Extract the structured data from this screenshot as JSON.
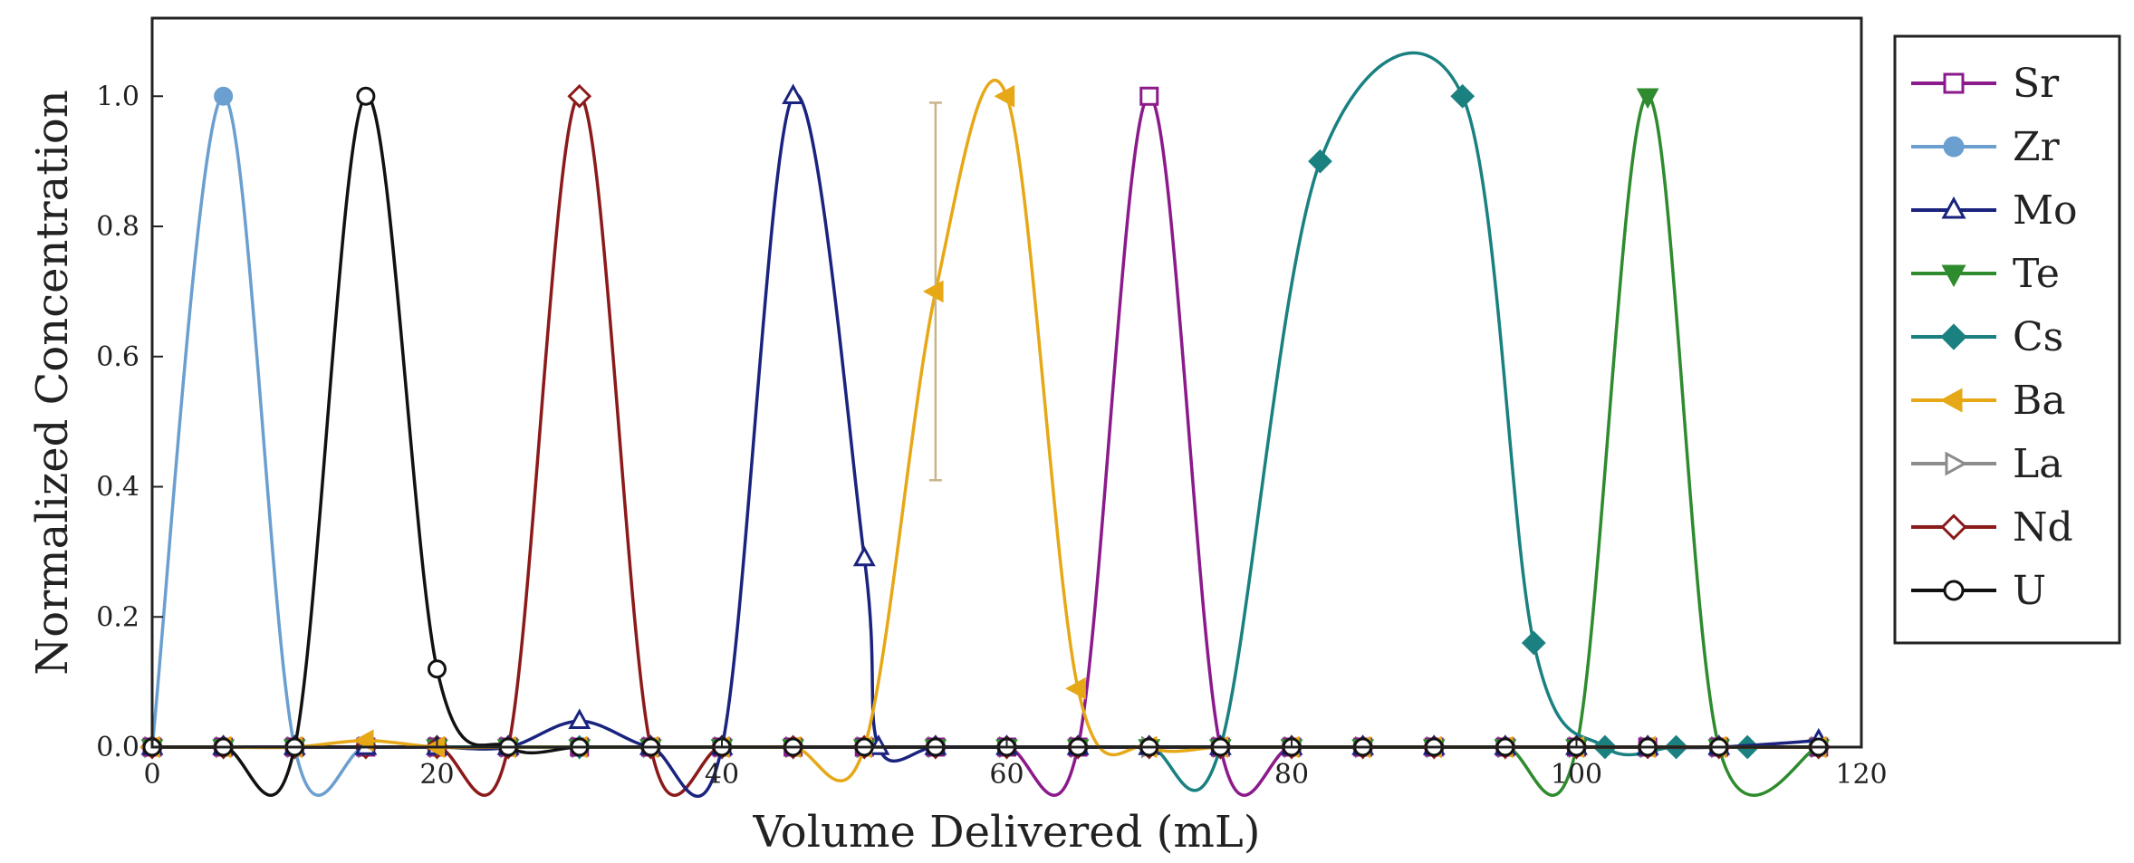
{
  "chart_data": {
    "type": "line",
    "xlabel": "Volume Delivered (mL)",
    "ylabel": "Normalized Concentration",
    "xlim": [
      0,
      120
    ],
    "ylim": [
      0,
      1.12
    ],
    "xticks": [
      0,
      20,
      40,
      60,
      80,
      100,
      120
    ],
    "yticks": [
      0.0,
      0.2,
      0.4,
      0.6,
      0.8,
      1.0
    ],
    "xtick_labels": [
      "0",
      "20",
      "40",
      "60",
      "80",
      "100",
      "120"
    ],
    "ytick_labels": [
      "0.0",
      "0.2",
      "0.4",
      "0.6",
      "0.8",
      "1.0"
    ],
    "grid": false,
    "legend_position": "right",
    "series": [
      {
        "name": "Sr",
        "color": "#8b1a8b",
        "marker": "square-open",
        "x": [
          0,
          5,
          10,
          15,
          20,
          25,
          30,
          35,
          40,
          45,
          50,
          55,
          60,
          65,
          70,
          75,
          80,
          85,
          90,
          95,
          100,
          105,
          110,
          117
        ],
        "y": [
          0,
          0,
          0,
          0,
          0,
          0,
          0,
          0,
          0,
          0,
          0,
          0,
          0,
          0,
          1.0,
          0,
          0,
          0,
          0,
          0,
          0,
          0,
          0,
          0
        ]
      },
      {
        "name": "Zr",
        "color": "#6a9fcf",
        "marker": "circle-filled",
        "x": [
          0,
          5,
          10,
          15,
          20,
          25,
          30,
          35,
          40,
          45,
          50,
          55,
          60,
          65,
          70,
          75,
          80,
          85,
          90,
          95,
          100,
          105,
          110,
          117
        ],
        "y": [
          0,
          1.0,
          0,
          0,
          0,
          0,
          0,
          0,
          0,
          0,
          0,
          0,
          0,
          0,
          0,
          0,
          0,
          0,
          0,
          0,
          0,
          0,
          0,
          0
        ]
      },
      {
        "name": "Mo",
        "color": "#1a237e",
        "marker": "triangle-up-open",
        "x": [
          0,
          5,
          10,
          15,
          20,
          25,
          30,
          35,
          40,
          45,
          50,
          51,
          55,
          60,
          65,
          70,
          75,
          80,
          85,
          90,
          95,
          100,
          105,
          110,
          117
        ],
        "y": [
          0,
          0,
          0,
          0,
          0,
          0,
          0.04,
          0,
          0,
          1.0,
          0.29,
          0,
          0,
          0,
          0,
          0,
          0,
          0,
          0,
          0,
          0,
          0,
          0,
          0,
          0.01
        ]
      },
      {
        "name": "Te",
        "color": "#2e8b2e",
        "marker": "triangle-down-filled",
        "x": [
          0,
          5,
          10,
          15,
          20,
          25,
          30,
          35,
          40,
          45,
          50,
          55,
          60,
          65,
          70,
          75,
          80,
          85,
          90,
          95,
          100,
          105,
          110,
          117
        ],
        "y": [
          0,
          0,
          0,
          0,
          0,
          0,
          0,
          0,
          0,
          0,
          0,
          0,
          0,
          0,
          0,
          0,
          0,
          0,
          0,
          0,
          0,
          1.0,
          0,
          0
        ]
      },
      {
        "name": "Cs",
        "color": "#1a8080",
        "marker": "diamond-filled",
        "x": [
          0,
          5,
          10,
          15,
          20,
          25,
          30,
          35,
          40,
          45,
          50,
          55,
          60,
          65,
          70,
          75,
          82,
          92,
          97,
          102,
          107,
          112,
          117
        ],
        "y": [
          0,
          0,
          0,
          0,
          0,
          0,
          0,
          0,
          0,
          0,
          0,
          0,
          0,
          0,
          0,
          0,
          0.9,
          1.0,
          0.16,
          0,
          0,
          0,
          0
        ]
      },
      {
        "name": "Ba",
        "color": "#e6a817",
        "marker": "triangle-left-filled",
        "x": [
          0,
          5,
          10,
          15,
          20,
          25,
          30,
          35,
          40,
          45,
          50,
          55,
          60,
          65,
          70,
          75,
          80,
          85,
          90,
          95,
          100,
          105,
          110,
          117
        ],
        "y": [
          0,
          0,
          0,
          0.01,
          0,
          0,
          0,
          0,
          0,
          0,
          0,
          0.7,
          1.0,
          0.09,
          0,
          0,
          0,
          0,
          0,
          0,
          0,
          0,
          0,
          0
        ],
        "error_bar": {
          "x": 55,
          "low": 0.41,
          "high": 0.99
        }
      },
      {
        "name": "La",
        "color": "#8c8c8c",
        "marker": "triangle-right-open",
        "x": [
          0,
          5,
          10,
          15,
          20,
          25,
          30,
          35,
          40,
          45,
          50,
          55,
          60,
          65,
          70,
          75,
          80,
          85,
          90,
          95,
          100,
          105,
          110,
          117
        ],
        "y": [
          0,
          0,
          0,
          0,
          0,
          0,
          0,
          0,
          0,
          0,
          0,
          0,
          0,
          0,
          0,
          0,
          0,
          0,
          0,
          0,
          0,
          0,
          0,
          0
        ]
      },
      {
        "name": "Nd",
        "color": "#8b1a1a",
        "marker": "diamond-open",
        "x": [
          0,
          5,
          10,
          15,
          20,
          25,
          30,
          35,
          40,
          45,
          50,
          55,
          60,
          65,
          70,
          75,
          80,
          85,
          90,
          95,
          100,
          105,
          110,
          117
        ],
        "y": [
          0,
          0,
          0,
          0,
          0,
          0,
          1.0,
          0,
          0,
          0,
          0,
          0,
          0,
          0,
          0,
          0,
          0,
          0,
          0,
          0,
          0,
          0,
          0,
          0
        ]
      },
      {
        "name": "U",
        "color": "#111111",
        "marker": "circle-open",
        "x": [
          0,
          5,
          10,
          15,
          20,
          25,
          30,
          35,
          40,
          45,
          50,
          55,
          60,
          65,
          70,
          75,
          80,
          85,
          90,
          95,
          100,
          105,
          110,
          117
        ],
        "y": [
          0,
          0,
          0,
          1.0,
          0.12,
          0,
          0,
          0,
          0,
          0,
          0,
          0,
          0,
          0,
          0,
          0,
          0,
          0,
          0,
          0,
          0,
          0,
          0,
          0
        ]
      }
    ]
  }
}
